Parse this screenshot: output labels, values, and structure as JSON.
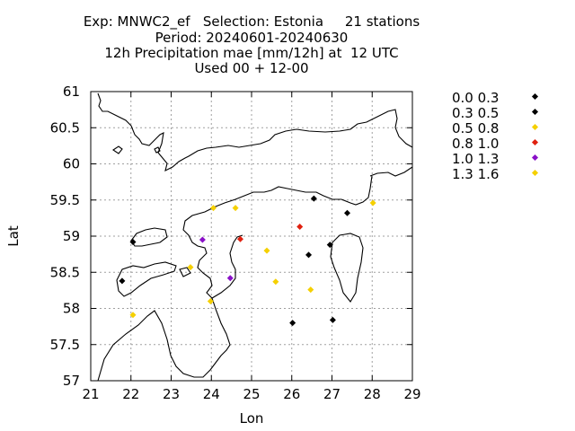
{
  "title": {
    "line1": "Exp: MNWC2_ef   Selection: Estonia     21 stations",
    "line2": "Period: 20240601-20240630",
    "line3": "12h Precipitation mae [mm/12h] at  12 UTC",
    "line4": "Used 00 + 12-00"
  },
  "chart_data": {
    "type": "scatter",
    "xlabel": "Lon",
    "ylabel": "Lat",
    "xlim": [
      21,
      29
    ],
    "ylim": [
      57,
      61
    ],
    "xticks": [
      "21",
      "22",
      "23",
      "24",
      "25",
      "26",
      "27",
      "28",
      "29"
    ],
    "yticks": [
      "57",
      "57.5",
      "58",
      "58.5",
      "59",
      "59.5",
      "60",
      "60.5",
      "61"
    ],
    "grid": true,
    "legend_position": "outside-right",
    "legend": [
      {
        "label": "0.0 0.3",
        "color": "#000000"
      },
      {
        "label": "0.3 0.5",
        "color": "#000000"
      },
      {
        "label": "0.5 0.8",
        "color": "#f5d000"
      },
      {
        "label": "0.8 1.0",
        "color": "#e0200f"
      },
      {
        "label": "1.0 1.3",
        "color": "#8a10c8"
      },
      {
        "label": "1.3 1.6",
        "color": "#f5d000"
      }
    ],
    "points": [
      {
        "lon": 22.05,
        "lat": 58.92,
        "cls": 0
      },
      {
        "lon": 21.78,
        "lat": 58.38,
        "cls": 0
      },
      {
        "lon": 26.55,
        "lat": 59.52,
        "cls": 0
      },
      {
        "lon": 27.38,
        "lat": 59.32,
        "cls": 1
      },
      {
        "lon": 26.95,
        "lat": 58.88,
        "cls": 0
      },
      {
        "lon": 26.42,
        "lat": 58.74,
        "cls": 1
      },
      {
        "lon": 26.02,
        "lat": 57.8,
        "cls": 0
      },
      {
        "lon": 27.02,
        "lat": 57.84,
        "cls": 0
      },
      {
        "lon": 24.05,
        "lat": 59.39,
        "cls": 2
      },
      {
        "lon": 24.6,
        "lat": 59.39,
        "cls": 2
      },
      {
        "lon": 28.02,
        "lat": 59.46,
        "cls": 2
      },
      {
        "lon": 26.2,
        "lat": 59.13,
        "cls": 3
      },
      {
        "lon": 24.72,
        "lat": 58.96,
        "cls": 3
      },
      {
        "lon": 23.78,
        "lat": 58.95,
        "cls": 4
      },
      {
        "lon": 24.47,
        "lat": 58.42,
        "cls": 4
      },
      {
        "lon": 23.48,
        "lat": 58.57,
        "cls": 2
      },
      {
        "lon": 25.38,
        "lat": 58.8,
        "cls": 2
      },
      {
        "lon": 25.6,
        "lat": 58.37,
        "cls": 5
      },
      {
        "lon": 26.47,
        "lat": 58.26,
        "cls": 5
      },
      {
        "lon": 23.98,
        "lat": 58.1,
        "cls": 5
      },
      {
        "lon": 22.05,
        "lat": 57.91,
        "cls": 2
      }
    ]
  }
}
